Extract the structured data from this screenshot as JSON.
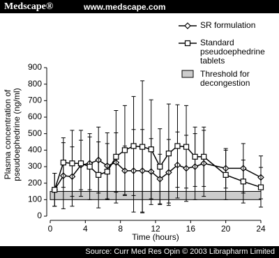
{
  "header": {
    "brand": "Medscape®",
    "url": "www.medscape.com"
  },
  "footer": {
    "source": "Source: Curr Med Res Opin © 2003 Librapharm Limited"
  },
  "chart_data": {
    "type": "line",
    "x_label": "Time (hours)",
    "y_label": "Plasma concentration of pseudoephedrine (ng/ml)",
    "xlim": [
      0,
      24
    ],
    "xticks": [
      0,
      4,
      8,
      12,
      16,
      20,
      24
    ],
    "ylim": [
      0,
      900
    ],
    "yticks": [
      0,
      100,
      200,
      300,
      400,
      500,
      600,
      700,
      800,
      900
    ],
    "x": [
      0.5,
      1.5,
      2.5,
      3.5,
      4.5,
      5.5,
      6.5,
      7.5,
      8.5,
      9.5,
      10.5,
      11.5,
      12.5,
      13.5,
      14.5,
      15.5,
      16.5,
      17.5,
      20,
      22,
      24
    ],
    "series": [
      {
        "name": "SR formulation",
        "marker": "diamond",
        "color": "#000000",
        "values": [
          160,
          245,
          240,
          310,
          320,
          340,
          305,
          325,
          275,
          275,
          275,
          270,
          225,
          265,
          310,
          290,
          300,
          320,
          290,
          290,
          235
        ],
        "errors": [
          100,
          200,
          180,
          150,
          160,
          200,
          200,
          180,
          150,
          250,
          250,
          200,
          150,
          200,
          200,
          200,
          200,
          200,
          120,
          150,
          130
        ]
      },
      {
        "name": "Standard pseudoephedrine tablets",
        "marker": "square",
        "color": "#000000",
        "values": [
          160,
          325,
          320,
          320,
          300,
          250,
          270,
          360,
          400,
          425,
          420,
          405,
          300,
          380,
          425,
          420,
          360,
          360,
          250,
          210,
          175
        ],
        "errors": [
          100,
          150,
          200,
          200,
          200,
          200,
          170,
          280,
          270,
          300,
          400,
          300,
          230,
          300,
          250,
          250,
          180,
          180,
          150,
          130,
          120
        ]
      }
    ],
    "threshold": {
      "name": "Threshold for decongestion",
      "low": 100,
      "high": 150,
      "color": "#cccccc"
    }
  }
}
